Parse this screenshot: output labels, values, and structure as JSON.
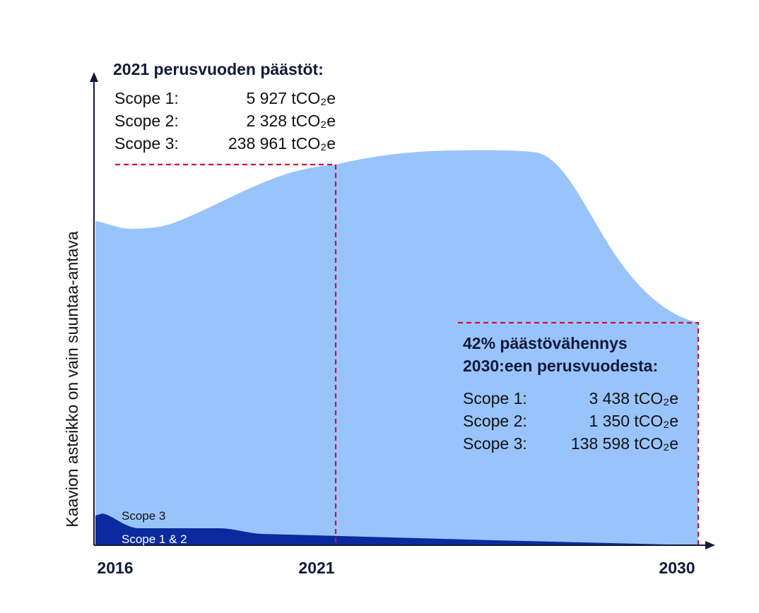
{
  "diagram": {
    "axis_label": "Kaavion asteikko on vain suuntaa-antava",
    "years": [
      "2016",
      "2021",
      "2030"
    ],
    "base": {
      "title": "2021 perusvuoden päästöt:",
      "rows": [
        [
          "Scope 1:",
          "5 927 tCO₂e"
        ],
        [
          "Scope 2:",
          "2 328 tCO₂e"
        ],
        [
          "Scope 3:",
          "238 961 tCO₂e"
        ]
      ]
    },
    "target": {
      "title_lines": [
        "42% päästövähennys",
        "2030:een perusvuodesta:"
      ],
      "rows": [
        [
          "Scope 1:",
          "3 438 tCO₂e"
        ],
        [
          "Scope 2:",
          "1 350 tCO₂e"
        ],
        [
          "Scope 3:",
          "138 598 tCO₂e"
        ]
      ]
    },
    "areas": [
      "Scope 3",
      "Scope 1 & 2"
    ]
  }
}
